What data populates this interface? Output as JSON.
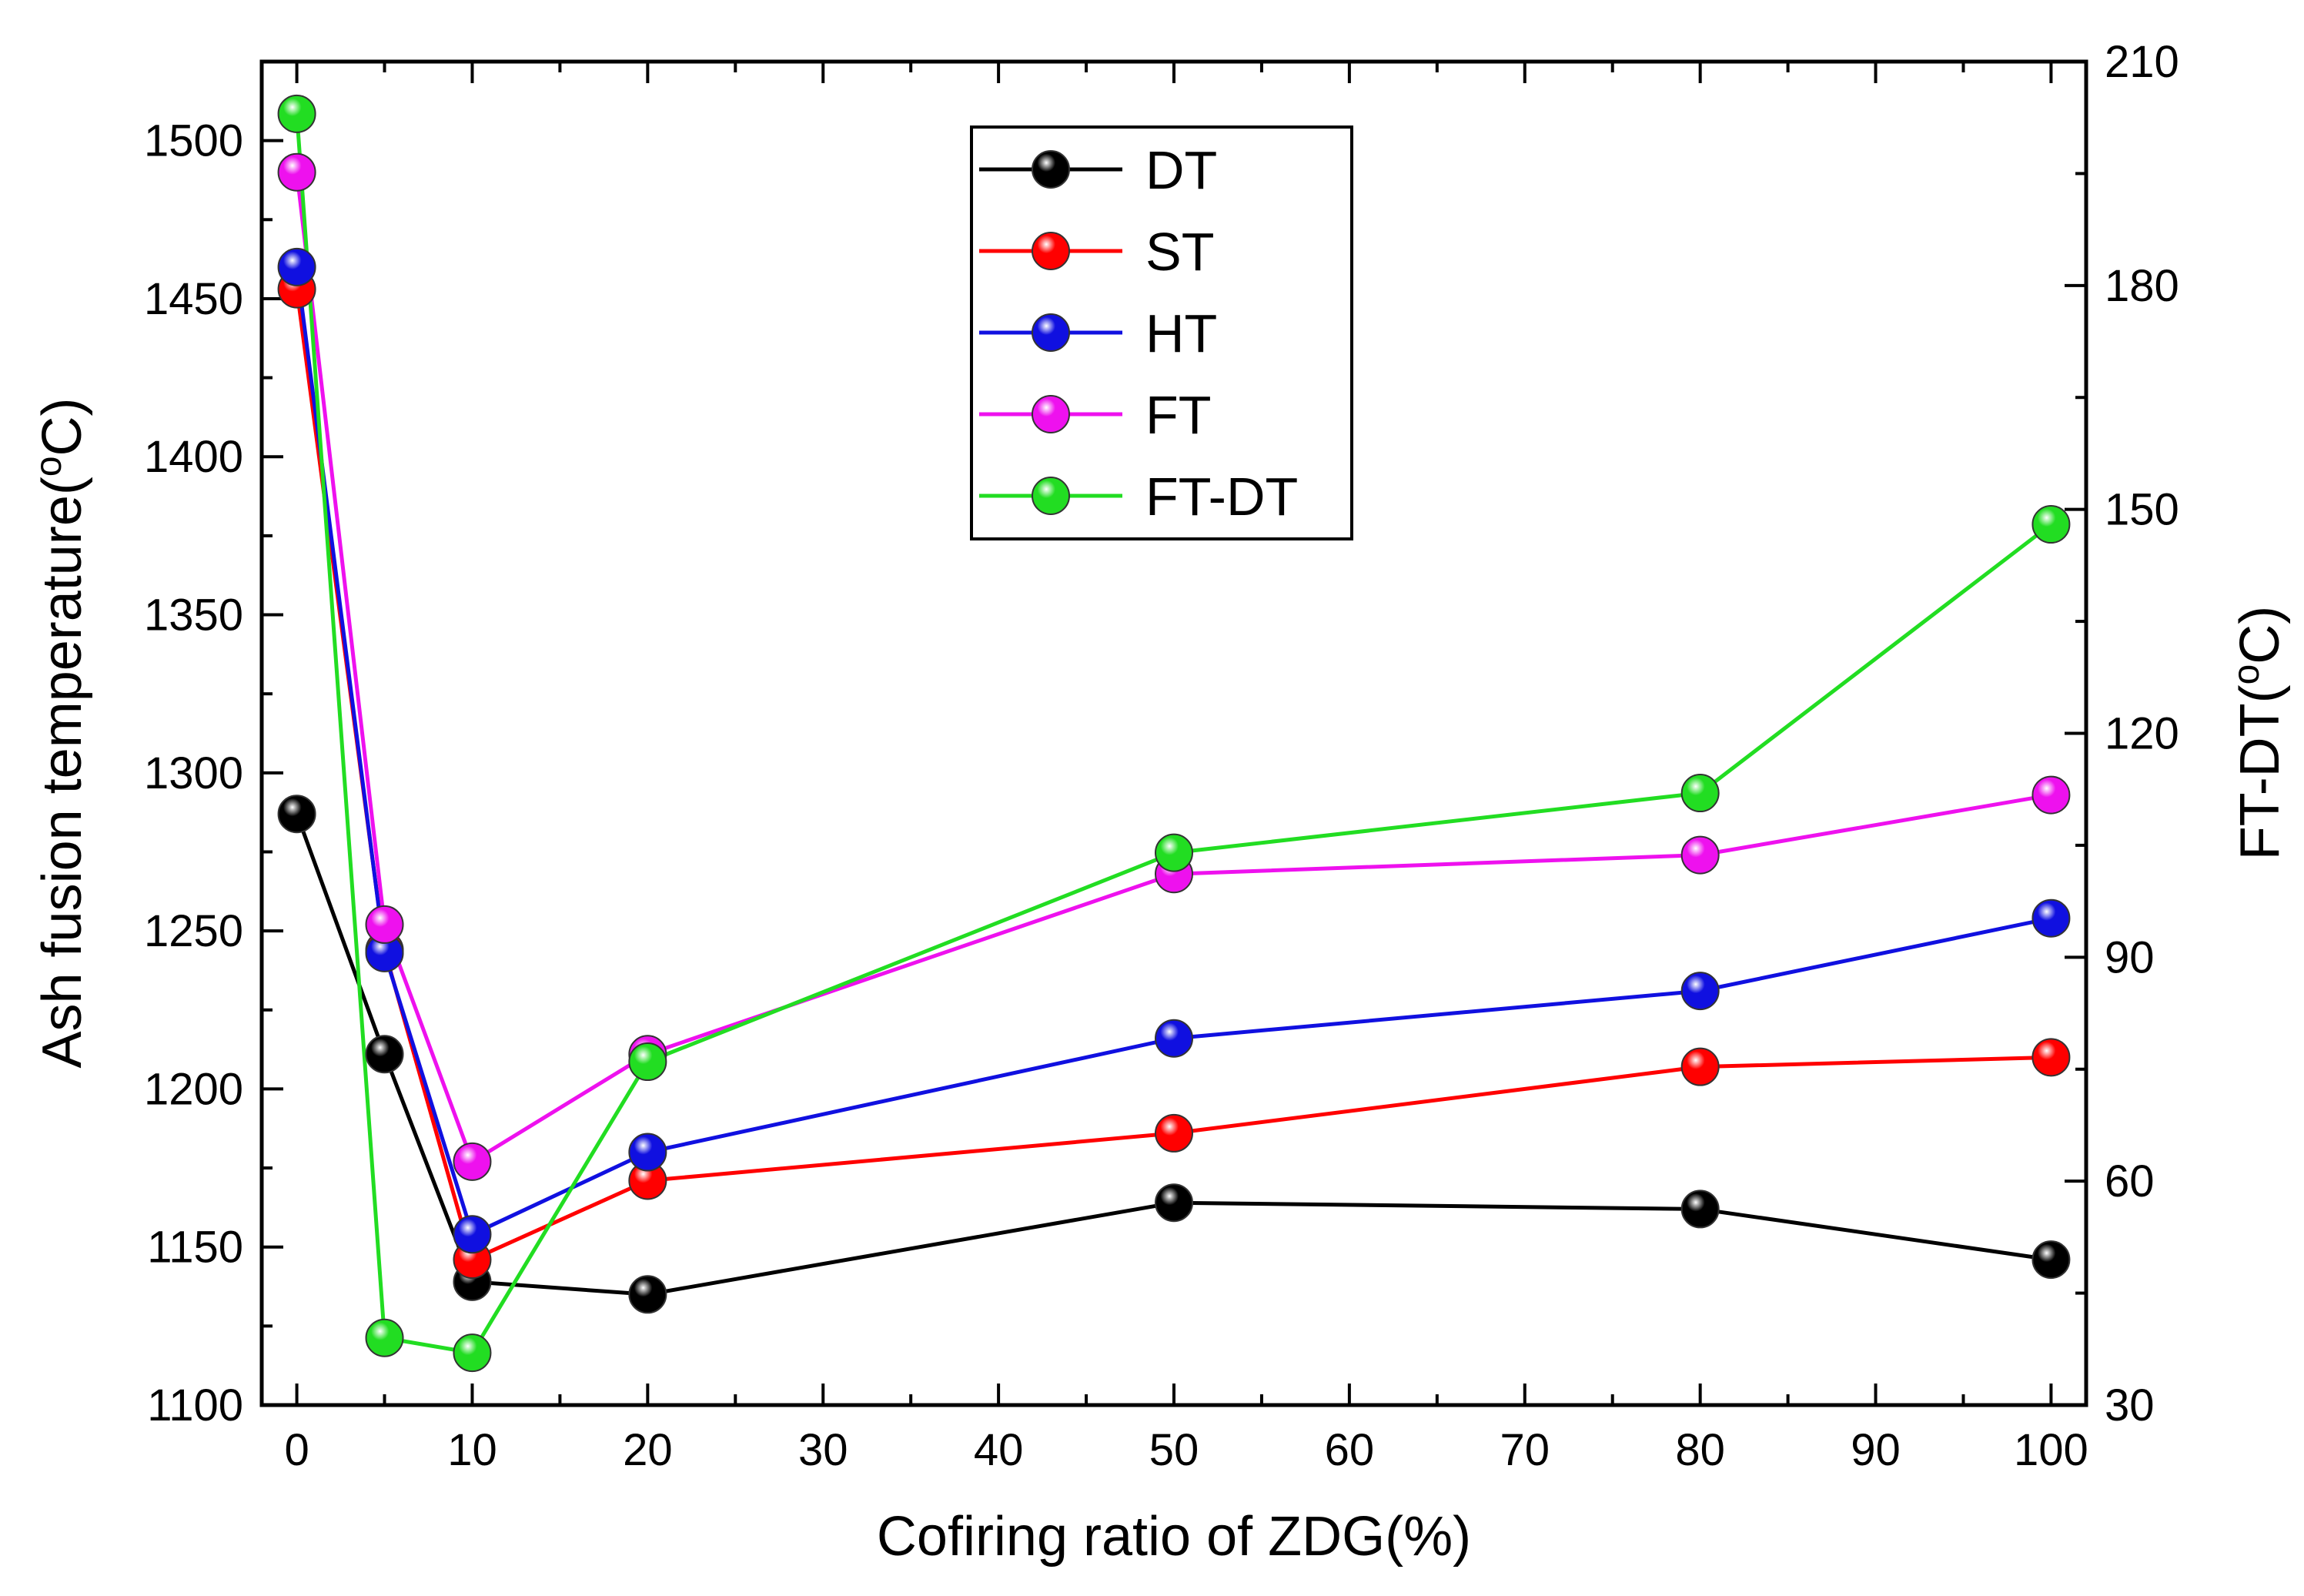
{
  "chart_data": {
    "type": "line",
    "title": "",
    "xlabel": "Cofiring ratio of ZDG(%)",
    "ylabel": {
      "prefix": "Ash fusion temperature(",
      "sup": "o",
      "suffix": "C)"
    },
    "y2label": {
      "prefix": "FT-DT(",
      "sup": "o",
      "suffix": "C)"
    },
    "xlim": [
      -2,
      102
    ],
    "ylim": [
      1100,
      1525
    ],
    "y2lim": [
      30,
      210
    ],
    "xticks": [
      0,
      10,
      20,
      30,
      40,
      50,
      60,
      70,
      80,
      90,
      100
    ],
    "yticks": [
      1100,
      1150,
      1200,
      1250,
      1300,
      1350,
      1400,
      1450,
      1500
    ],
    "y2ticks": [
      30,
      60,
      90,
      120,
      150,
      180,
      210
    ],
    "x": [
      0,
      5,
      10,
      20,
      50,
      80,
      100
    ],
    "series": [
      {
        "name": "DT",
        "color": "#000000",
        "axis": "left",
        "values": [
          1287,
          1211,
          1139,
          1135,
          1164,
          1162,
          1146
        ]
      },
      {
        "name": "ST",
        "color": "#ff0000",
        "axis": "left",
        "values": [
          1453,
          1244,
          1146,
          1171,
          1186,
          1207,
          1210
        ]
      },
      {
        "name": "HT",
        "color": "#1010e0",
        "axis": "left",
        "values": [
          1460,
          1243,
          1154,
          1180,
          1216,
          1231,
          1254
        ]
      },
      {
        "name": "FT",
        "color": "#ee11ee",
        "axis": "left",
        "values": [
          1490,
          1252,
          1177,
          1211,
          1268,
          1274,
          1293
        ]
      },
      {
        "name": "FT-DT",
        "color": "#22dd22",
        "axis": "right",
        "values": [
          203,
          39,
          37,
          76,
          104,
          112,
          148
        ]
      }
    ],
    "legend_position": "top-center"
  }
}
